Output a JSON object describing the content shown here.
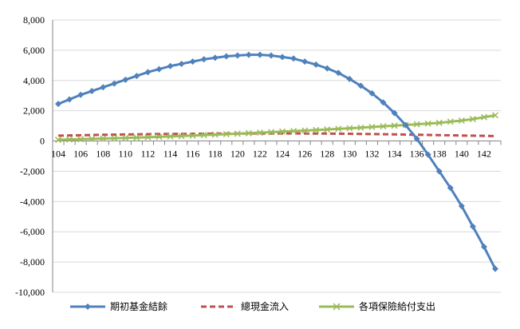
{
  "chart_data": {
    "type": "line",
    "title": "",
    "xlabel": "",
    "ylabel": "",
    "x": [
      104,
      105,
      106,
      107,
      108,
      109,
      110,
      111,
      112,
      113,
      114,
      115,
      116,
      117,
      118,
      119,
      120,
      121,
      122,
      123,
      124,
      125,
      126,
      127,
      128,
      129,
      130,
      131,
      132,
      133,
      134,
      135,
      136,
      137,
      138,
      139,
      140,
      141,
      142,
      143
    ],
    "x_tick_labels": [
      "104",
      "106",
      "108",
      "110",
      "112",
      "114",
      "116",
      "118",
      "120",
      "122",
      "124",
      "126",
      "128",
      "130",
      "132",
      "134",
      "136",
      "138",
      "140",
      "142"
    ],
    "y_tick_labels": [
      "8,000",
      "6,000",
      "4,000",
      "2,000",
      "0",
      "-2,000",
      "-4,000",
      "-6,000",
      "-8,000",
      "-10,000"
    ],
    "ylim": [
      -10000,
      8000
    ],
    "grid": "horizontal",
    "legend_position": "bottom",
    "series": [
      {
        "name": "期初基金結餘",
        "color": "#4f81bd",
        "marker": "diamond",
        "line_style": "solid",
        "values": [
          2450,
          2750,
          3050,
          3300,
          3550,
          3800,
          4050,
          4300,
          4550,
          4750,
          4950,
          5100,
          5250,
          5400,
          5500,
          5600,
          5650,
          5700,
          5700,
          5650,
          5550,
          5450,
          5250,
          5050,
          4800,
          4500,
          4100,
          3650,
          3150,
          2550,
          1850,
          1050,
          150,
          -900,
          -2000,
          -3100,
          -4300,
          -5650,
          -7000,
          -8450
        ]
      },
      {
        "name": "總現金流入",
        "color": "#c0504d",
        "marker": "none",
        "line_style": "dashed",
        "values": [
          350,
          365,
          380,
          395,
          410,
          420,
          430,
          440,
          450,
          460,
          465,
          470,
          475,
          480,
          485,
          490,
          492,
          495,
          497,
          498,
          498,
          497,
          495,
          492,
          488,
          482,
          475,
          467,
          458,
          448,
          437,
          425,
          413,
          400,
          388,
          375,
          362,
          350,
          338,
          325
        ]
      },
      {
        "name": "各項保險給付支出",
        "color": "#9bbb59",
        "marker": "x",
        "line_style": "solid",
        "values": [
          80,
          100,
          120,
          140,
          160,
          180,
          200,
          225,
          250,
          275,
          300,
          330,
          360,
          390,
          420,
          450,
          480,
          515,
          550,
          585,
          620,
          655,
          690,
          725,
          760,
          800,
          840,
          880,
          925,
          970,
          1015,
          1060,
          1105,
          1150,
          1200,
          1275,
          1350,
          1450,
          1575,
          1700
        ]
      }
    ]
  }
}
